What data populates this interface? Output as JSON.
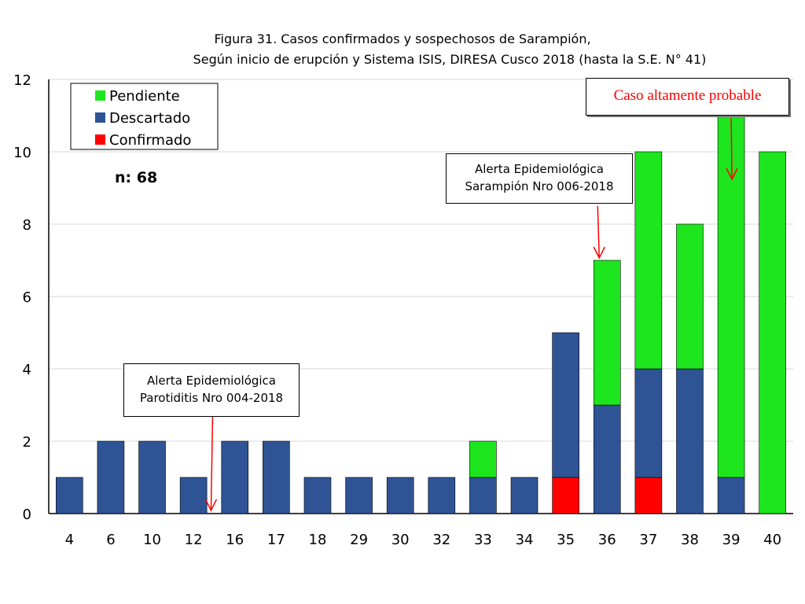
{
  "chart_data": {
    "type": "bar",
    "stacked": true,
    "title": "Figura 31. Casos confirmados y sospechosos de Sarampión,",
    "subtitle": "Según inicio de erupción y Sistema ISIS, DIRESA Cusco 2018 (hasta la S.E. N° 41)",
    "xlabel": "",
    "ylabel": "",
    "ylim": [
      0,
      12
    ],
    "yticks": [
      0,
      2,
      4,
      6,
      8,
      10,
      12
    ],
    "grid": true,
    "legend_position": "top-left",
    "categories": [
      "4",
      "6",
      "10",
      "12",
      "16",
      "17",
      "18",
      "29",
      "30",
      "32",
      "33",
      "34",
      "35",
      "36",
      "37",
      "38",
      "39",
      "40"
    ],
    "series": [
      {
        "name": "Confirmado",
        "color": "#ff0000",
        "values": [
          0,
          0,
          0,
          0,
          0,
          0,
          0,
          0,
          0,
          0,
          0,
          0,
          1,
          0,
          1,
          0,
          0,
          0
        ]
      },
      {
        "name": "Descartado",
        "color": "#2f5496",
        "values": [
          1,
          2,
          2,
          1,
          2,
          2,
          1,
          1,
          1,
          1,
          1,
          1,
          4,
          3,
          3,
          4,
          1,
          0
        ]
      },
      {
        "name": "Pendiente",
        "color": "#1ee61e",
        "values": [
          0,
          0,
          0,
          0,
          0,
          0,
          0,
          0,
          0,
          0,
          1,
          0,
          0,
          4,
          6,
          4,
          10,
          10
        ]
      }
    ],
    "legend_order": [
      "Pendiente",
      "Descartado",
      "Confirmado"
    ],
    "n_label": "n: 68",
    "annotations": [
      {
        "id": "alert-parotiditis",
        "lines": [
          "Alerta Epidemiológica",
          "Parotiditis Nro  004-2018"
        ],
        "points_to_between": [
          "12",
          "16"
        ]
      },
      {
        "id": "alert-sarampion",
        "lines": [
          "Alerta Epidemiológica",
          "Sarampión Nro 006-2018"
        ],
        "points_to_category": "36"
      },
      {
        "id": "caso-probable",
        "lines": [
          "Caso altamente probable"
        ],
        "points_to_category": "39",
        "color": "#ff0000"
      }
    ]
  }
}
